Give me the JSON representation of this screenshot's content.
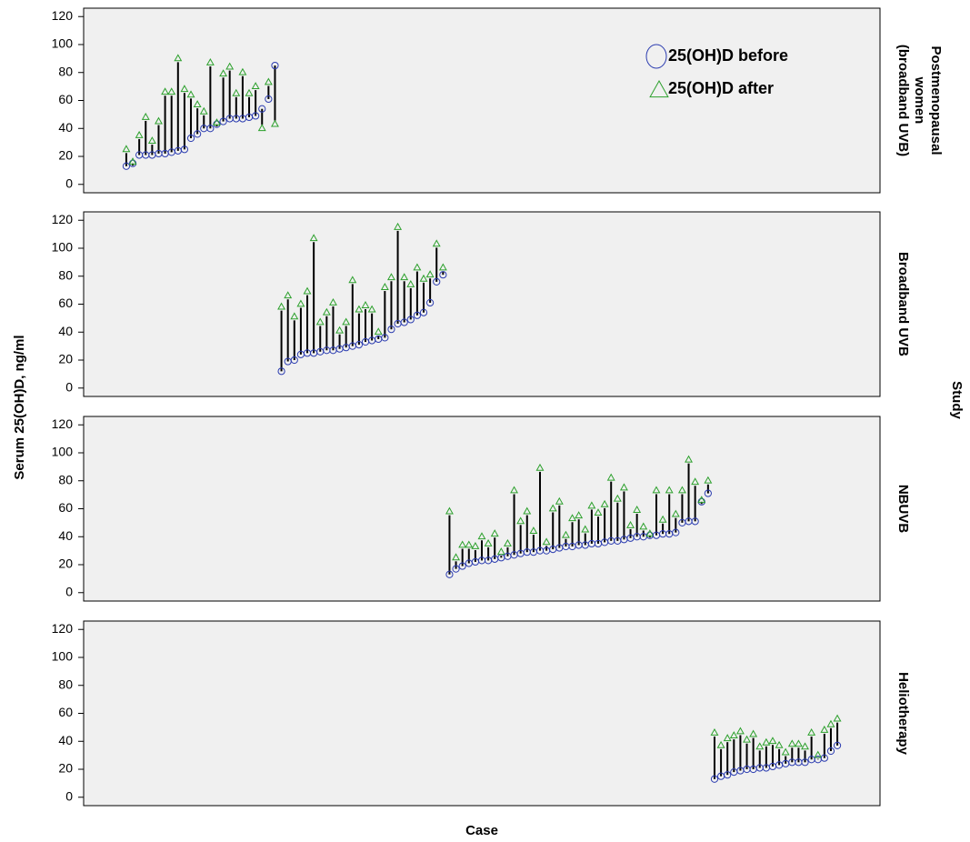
{
  "y_label": "Serum 25(OH)D, ng/ml",
  "x_label": "Case",
  "facet_label": "Study",
  "chart_data": [
    {
      "type": "dumbbell",
      "title": [
        "Postmenopausal",
        "women",
        "(broadband UVB)"
      ],
      "legend": "top right",
      "x": [
        1,
        2,
        3,
        4,
        5,
        6,
        7,
        8,
        9,
        10,
        11,
        12,
        13,
        14,
        15,
        16,
        17,
        18,
        19,
        20,
        21,
        22,
        23,
        24
      ],
      "series": [
        {
          "name": "25(OH)D before",
          "color": "#2b3cb0",
          "values": [
            13,
            15,
            21,
            21,
            21,
            22,
            22,
            23,
            24,
            25,
            33,
            36,
            40,
            40,
            43,
            45,
            47,
            47,
            47,
            48,
            49,
            54,
            61,
            85
          ]
        },
        {
          "name": "25(OH)D after",
          "color": "#2ca02c",
          "values": [
            25,
            16,
            35,
            48,
            31,
            45,
            66,
            66,
            90,
            68,
            64,
            57,
            52,
            87,
            44,
            79,
            84,
            65,
            80,
            65,
            70,
            40,
            73,
            43
          ]
        }
      ],
      "xlim": [
        -5.6,
        117.6
      ],
      "ylim": [
        -6,
        126
      ],
      "yticks": [
        0,
        20,
        40,
        60,
        80,
        100,
        120
      ]
    },
    {
      "type": "dumbbell",
      "title": [
        "Broadband UVB"
      ],
      "x": [
        25,
        26,
        27,
        28,
        29,
        30,
        31,
        32,
        33,
        34,
        35,
        36,
        37,
        38,
        39,
        40,
        41,
        42,
        43,
        44,
        45,
        46,
        47,
        48,
        49,
        50
      ],
      "series": [
        {
          "color": "#2b3cb0",
          "values": [
            12,
            19,
            20,
            24,
            25,
            25,
            26,
            27,
            27,
            28,
            29,
            30,
            31,
            33,
            34,
            35,
            36,
            42,
            46,
            47,
            49,
            52,
            54,
            61,
            76,
            81
          ]
        },
        {
          "color": "#2ca02c",
          "values": [
            58,
            66,
            51,
            60,
            69,
            107,
            47,
            54,
            61,
            41,
            47,
            77,
            56,
            59,
            56,
            40,
            72,
            79,
            115,
            79,
            74,
            86,
            78,
            81,
            103,
            86
          ]
        }
      ],
      "xlim": [
        -5.6,
        117.6
      ],
      "ylim": [
        -6,
        126
      ],
      "yticks": [
        0,
        20,
        40,
        60,
        80,
        100,
        120
      ]
    },
    {
      "type": "dumbbell",
      "title": [
        "NBUVB"
      ],
      "x": [
        51,
        52,
        53,
        54,
        55,
        56,
        57,
        58,
        59,
        60,
        61,
        62,
        63,
        64,
        65,
        66,
        67,
        68,
        69,
        70,
        71,
        72,
        73,
        74,
        75,
        76,
        77,
        78,
        79,
        80,
        81,
        82,
        83,
        84,
        85,
        86,
        87,
        88,
        89,
        90,
        91
      ],
      "series": [
        {
          "color": "#2b3cb0",
          "values": [
            13,
            17,
            19,
            21,
            22,
            23,
            23,
            24,
            25,
            26,
            27,
            28,
            29,
            29,
            30,
            30,
            31,
            32,
            33,
            33,
            34,
            34,
            35,
            35,
            36,
            37,
            37,
            38,
            39,
            40,
            40,
            41,
            41,
            42,
            42,
            43,
            50,
            51,
            51,
            65,
            71
          ]
        },
        {
          "color": "#2ca02c",
          "values": [
            58,
            25,
            34,
            34,
            33,
            40,
            35,
            42,
            29,
            35,
            73,
            51,
            58,
            44,
            89,
            36,
            60,
            65,
            41,
            53,
            55,
            45,
            62,
            57,
            63,
            82,
            67,
            75,
            48,
            59,
            47,
            42,
            73,
            52,
            73,
            56,
            73,
            95,
            79,
            66,
            80
          ]
        }
      ],
      "xlim": [
        -5.6,
        117.6
      ],
      "ylim": [
        -6,
        126
      ],
      "yticks": [
        0,
        20,
        40,
        60,
        80,
        100,
        120
      ]
    },
    {
      "type": "dumbbell",
      "title": [
        "Heliotherapy"
      ],
      "x": [
        92,
        93,
        94,
        95,
        96,
        97,
        98,
        99,
        100,
        101,
        102,
        103,
        104,
        105,
        106,
        107,
        108,
        109,
        110,
        111
      ],
      "series": [
        {
          "color": "#2b3cb0",
          "values": [
            13,
            15,
            16,
            18,
            19,
            20,
            20,
            21,
            21,
            22,
            23,
            24,
            25,
            25,
            25,
            27,
            27,
            28,
            33,
            37
          ]
        },
        {
          "color": "#2ca02c",
          "values": [
            46,
            37,
            42,
            44,
            47,
            41,
            45,
            36,
            39,
            40,
            37,
            32,
            38,
            38,
            36,
            46,
            30,
            48,
            52,
            56
          ]
        }
      ],
      "xlim": [
        -5.6,
        117.6
      ],
      "ylim": [
        -6,
        126
      ],
      "yticks": [
        0,
        20,
        40,
        60,
        80,
        100,
        120
      ]
    }
  ]
}
